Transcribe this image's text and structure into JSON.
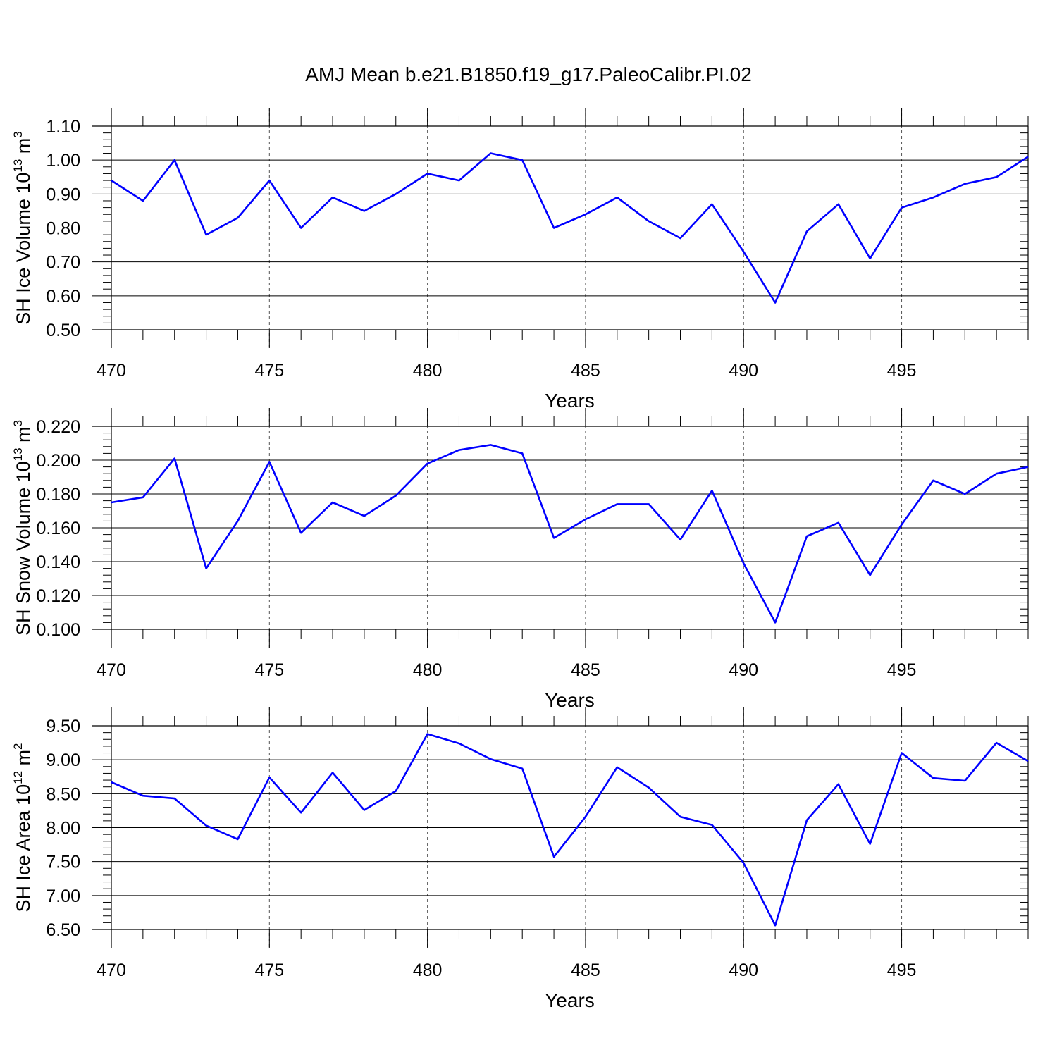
{
  "title": "AMJ Mean b.e21.B1850.f19_g17.PaleoCalibr.PI.02",
  "colors": {
    "line": "#0000ff",
    "axes": "#000000",
    "grid": "#555555"
  },
  "chart_data": [
    {
      "type": "line",
      "xlabel": "Years",
      "ylabel": {
        "text": "SH Ice Volume 10",
        "sup1": "13",
        "mid": " m",
        "sup2": "3"
      },
      "xlim": [
        470,
        499
      ],
      "ylim": [
        0.5,
        1.1
      ],
      "xticks": [
        "470",
        "475",
        "480",
        "485",
        "490",
        "495"
      ],
      "yticks": [
        "0.50",
        "0.60",
        "0.70",
        "0.80",
        "0.90",
        "1.00",
        "1.10"
      ],
      "grid": "vertical dashed at major x ticks",
      "x": [
        470,
        471,
        472,
        473,
        474,
        475,
        476,
        477,
        478,
        479,
        480,
        481,
        482,
        483,
        484,
        485,
        486,
        487,
        488,
        489,
        490,
        491,
        492,
        493,
        494,
        495,
        496,
        497,
        498,
        499
      ],
      "y": [
        0.94,
        0.88,
        1.0,
        0.78,
        0.83,
        0.94,
        0.8,
        0.89,
        0.85,
        0.9,
        0.96,
        0.94,
        1.02,
        1.0,
        0.8,
        0.84,
        0.89,
        0.82,
        0.77,
        0.87,
        0.73,
        0.58,
        0.79,
        0.87,
        0.71,
        0.86,
        0.89,
        0.93,
        0.95,
        1.01
      ]
    },
    {
      "type": "line",
      "xlabel": "Years",
      "ylabel": {
        "text": "SH Snow Volume 10",
        "sup1": "13",
        "mid": " m",
        "sup2": "3"
      },
      "xlim": [
        470,
        499
      ],
      "ylim": [
        0.1,
        0.22
      ],
      "xticks": [
        "470",
        "475",
        "480",
        "485",
        "490",
        "495"
      ],
      "yticks": [
        "0.100",
        "0.120",
        "0.140",
        "0.160",
        "0.180",
        "0.200",
        "0.220"
      ],
      "grid": "vertical dashed at major x ticks",
      "x": [
        470,
        471,
        472,
        473,
        474,
        475,
        476,
        477,
        478,
        479,
        480,
        481,
        482,
        483,
        484,
        485,
        486,
        487,
        488,
        489,
        490,
        491,
        492,
        493,
        494,
        495,
        496,
        497,
        498,
        499
      ],
      "y": [
        0.175,
        0.178,
        0.201,
        0.136,
        0.164,
        0.199,
        0.157,
        0.175,
        0.167,
        0.179,
        0.198,
        0.206,
        0.209,
        0.204,
        0.154,
        0.165,
        0.174,
        0.174,
        0.153,
        0.182,
        0.139,
        0.104,
        0.155,
        0.163,
        0.132,
        0.162,
        0.188,
        0.18,
        0.192,
        0.196
      ]
    },
    {
      "type": "line",
      "xlabel": "Years",
      "ylabel": {
        "text": "SH Ice Area 10",
        "sup1": "12",
        "mid": " m",
        "sup2": "2"
      },
      "xlim": [
        470,
        499
      ],
      "ylim": [
        6.5,
        9.5
      ],
      "xticks": [
        "470",
        "475",
        "480",
        "485",
        "490",
        "495"
      ],
      "yticks": [
        "6.50",
        "7.00",
        "7.50",
        "8.00",
        "8.50",
        "9.00",
        "9.50"
      ],
      "grid": "vertical dashed at major x ticks",
      "x": [
        470,
        471,
        472,
        473,
        474,
        475,
        476,
        477,
        478,
        479,
        480,
        481,
        482,
        483,
        484,
        485,
        486,
        487,
        488,
        489,
        490,
        491,
        492,
        493,
        494,
        495,
        496,
        497,
        498,
        499
      ],
      "y": [
        8.67,
        8.47,
        8.43,
        8.03,
        7.83,
        8.74,
        8.22,
        8.81,
        8.26,
        8.54,
        9.38,
        9.24,
        9.01,
        8.87,
        7.57,
        8.16,
        8.89,
        8.59,
        8.16,
        8.04,
        7.48,
        6.56,
        8.11,
        8.64,
        7.76,
        9.1,
        8.73,
        8.69,
        9.25,
        8.98
      ]
    }
  ]
}
